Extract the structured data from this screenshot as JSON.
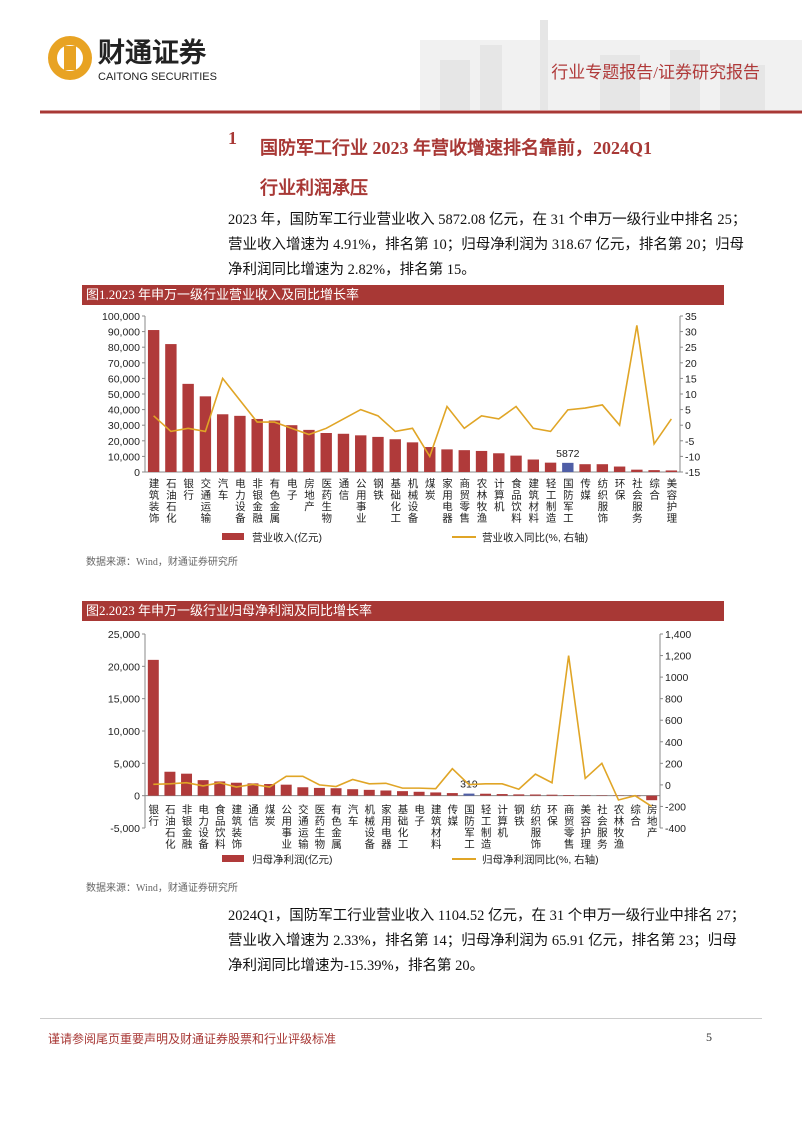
{
  "header": {
    "brand_cn": "财通证券",
    "brand_en": "CAITONG SECURITIES",
    "report_type": "行业专题报告/证券研究报告"
  },
  "section": {
    "number": "1",
    "title_lines": [
      "国防军工行业 2023 年营收增速排名靠前，2024Q1",
      "行业利润承压"
    ]
  },
  "paragraph1": [
    "2023 年，国防军工行业营业收入 5872.08 亿元，在 31 个申万一级行业中排名 25；",
    "营业收入增速为 4.91%，排名第 10；归母净利润为 318.67 亿元，排名第 20；归母",
    "净利润同比增速为 2.82%，排名第 15。"
  ],
  "paragraph2": [
    "2024Q1，国防军工行业营业收入 1104.52 亿元，在 31 个申万一级行业中排名 27；",
    "营业收入增速为 2.33%，排名第 14；归母净利润为 65.91 亿元，排名第 23；归母",
    "净利润同比增速为-15.39%，排名第 20。"
  ],
  "footer": {
    "disclaimer": "谨请参阅尾页重要声明及财通证券股票和行业评级标准",
    "page": "5"
  },
  "chart_data": [
    {
      "type": "bar_line",
      "title": "图1.2023 年申万一级行业营业收入及同比增长率",
      "source": "数据来源：Wind，财通证券研究所",
      "categories": [
        "建筑装饰",
        "石油石化",
        "银行",
        "交通运输",
        "汽车",
        "电力设备",
        "非银金融",
        "有色金属",
        "电子",
        "房地产",
        "医药生物",
        "通信",
        "公用事业",
        "钢铁",
        "基础化工",
        "机械设备",
        "煤炭",
        "家用电器",
        "商贸零售",
        "农林牧渔",
        "计算机",
        "食品饮料",
        "建筑材料",
        "轻工制造",
        "国防军工",
        "传媒",
        "纺织服饰",
        "环保",
        "社会服务",
        "综合",
        "美容护理"
      ],
      "highlight_category": "国防军工",
      "highlight_color": "#4f5ea6",
      "series": [
        {
          "name": "营业收入(亿元)",
          "type": "bar",
          "color": "#b03a3a",
          "values": [
            91000,
            82000,
            56500,
            48500,
            37000,
            36000,
            34000,
            33000,
            30000,
            27000,
            25000,
            24500,
            23500,
            22500,
            21000,
            19000,
            16000,
            14500,
            14000,
            13500,
            12000,
            10500,
            8000,
            6000,
            5872.08,
            5000,
            5000,
            3500,
            1500,
            1200,
            1000
          ],
          "value_labels": [
            null,
            null,
            null,
            null,
            null,
            null,
            null,
            null,
            null,
            null,
            null,
            null,
            null,
            null,
            null,
            null,
            null,
            null,
            null,
            null,
            null,
            null,
            null,
            null,
            "5872",
            null,
            null,
            null,
            null,
            null,
            null
          ]
        },
        {
          "name": "营业收入同比(%, 右轴)",
          "type": "line",
          "axis": "y2",
          "color": "#e0a526",
          "values": [
            3,
            -2,
            -1,
            -2,
            15,
            8,
            1,
            1,
            -1,
            -3,
            -1,
            2,
            5,
            3,
            -2,
            -1,
            -10,
            6,
            -1,
            3,
            2,
            6,
            -1,
            -2,
            4.91,
            5.5,
            6.5,
            0,
            32,
            -6,
            2
          ]
        }
      ],
      "ylim": [
        0,
        100000
      ],
      "yticks": [
        0,
        {
          "value": 10000,
          "label": "10,000"
        },
        {
          "value": 20000,
          "label": "20,000"
        },
        {
          "value": 30000,
          "label": "30,000"
        },
        {
          "value": 40000,
          "label": "40,000"
        },
        {
          "value": 50000,
          "label": "50,000"
        },
        {
          "value": 60000,
          "label": "60,000"
        },
        {
          "value": 70000,
          "label": "70,000"
        },
        {
          "value": 80000,
          "label": "80,000"
        },
        {
          "value": 90000,
          "label": "90,000"
        },
        {
          "value": 100000,
          "label": "100,000"
        }
      ],
      "y2lim": [
        -15,
        35
      ],
      "y2ticks": [
        -15,
        -10,
        -5,
        0,
        5,
        10,
        15,
        20,
        25,
        30,
        35
      ]
    },
    {
      "type": "bar_line",
      "title": "图2.2023 年申万一级行业归母净利润及同比增长率",
      "source": "数据来源：Wind，财通证券研究所",
      "categories": [
        "银行",
        "石油石化",
        "非银金融",
        "电力设备",
        "食品饮料",
        "建筑装饰",
        "通信",
        "煤炭",
        "公用事业",
        "交通运输",
        "医药生物",
        "有色金属",
        "汽车",
        "机械设备",
        "家用电器",
        "基础化工",
        "电子",
        "建筑材料",
        "传媒",
        "国防军工",
        "轻工制造",
        "计算机",
        "钢铁",
        "纺织服饰",
        "环保",
        "商贸零售",
        "美容护理",
        "社会服务",
        "农林牧渔",
        "综合",
        "房地产"
      ],
      "highlight_category": "国防军工",
      "highlight_color": "#4f5ea6",
      "series": [
        {
          "name": "归母净利润(亿元)",
          "type": "bar",
          "color": "#b03a3a",
          "values": [
            21000,
            3700,
            3400,
            2400,
            2200,
            2000,
            1900,
            1800,
            1700,
            1300,
            1200,
            1150,
            1000,
            900,
            800,
            700,
            600,
            500,
            400,
            318.67,
            300,
            250,
            200,
            180,
            150,
            100,
            80,
            60,
            -50,
            -100,
            -700
          ],
          "value_labels": [
            null,
            null,
            null,
            null,
            null,
            null,
            null,
            null,
            null,
            null,
            null,
            null,
            null,
            null,
            null,
            null,
            null,
            null,
            null,
            "319",
            null,
            null,
            null,
            null,
            null,
            null,
            null,
            null,
            null,
            null,
            null
          ]
        },
        {
          "name": "归母净利润同比(%, 右轴)",
          "type": "line",
          "axis": "y2",
          "color": "#e0a526",
          "values": [
            5,
            10,
            20,
            -10,
            20,
            -20,
            5,
            -20,
            80,
            80,
            0,
            -15,
            50,
            10,
            15,
            -30,
            -30,
            -35,
            150,
            2.82,
            10,
            10,
            -40,
            100,
            20,
            1200,
            60,
            200,
            -140,
            -100,
            -200
          ]
        }
      ],
      "ylim": [
        -5000,
        25000
      ],
      "yticks": [
        {
          "value": -5000,
          "label": "-5,000"
        },
        0,
        {
          "value": 5000,
          "label": "5,000"
        },
        {
          "value": 10000,
          "label": "10,000"
        },
        {
          "value": 15000,
          "label": "15,000"
        },
        {
          "value": 20000,
          "label": "20,000"
        },
        {
          "value": 25000,
          "label": "25,000"
        }
      ],
      "y2lim": [
        -400,
        1400
      ],
      "y2ticks": [
        -400,
        -200,
        0,
        200,
        400,
        600,
        800,
        1000,
        {
          "value": 1200,
          "label": "1,200"
        },
        {
          "value": 1400,
          "label": "1,400"
        }
      ]
    }
  ]
}
